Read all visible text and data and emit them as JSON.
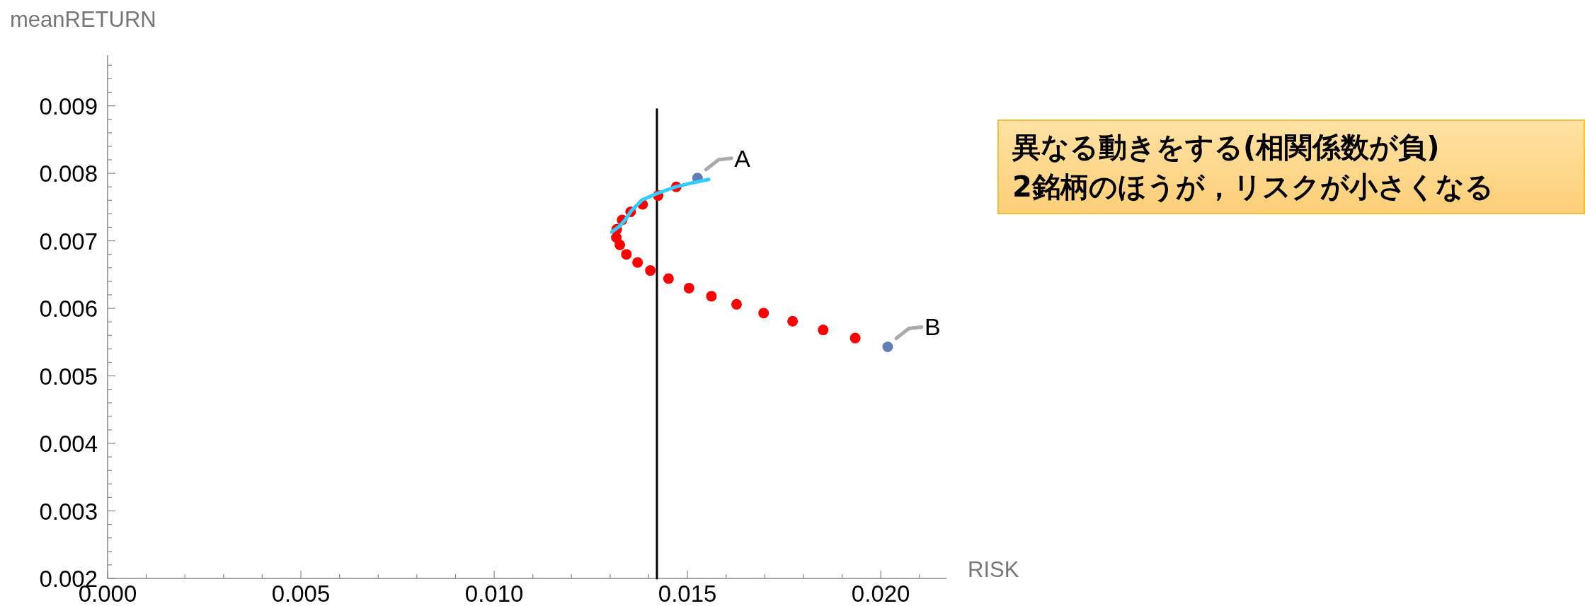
{
  "chart_data": {
    "type": "scatter",
    "xlabel": "RISK",
    "ylabel": "meanRETURN",
    "annotations": [
      {
        "text": "A",
        "x": 0.01526,
        "y": 0.00793
      },
      {
        "text": "B",
        "x": 0.02018,
        "y": 0.00543
      },
      "異なる動きをする(相関係数が負)",
      "2銘柄のほうが，リスクが小さくなる"
    ],
    "xlim": [
      0,
      0.0217
    ],
    "ylim": [
      0.002,
      0.00975
    ],
    "xticks": [
      {
        "value": 0,
        "label": "0.000"
      },
      0.005,
      {
        "value": 0.01,
        "label": "0.010"
      },
      0.015,
      {
        "value": 0.02,
        "label": "0.020"
      },
      {
        "value": 0.001,
        "label": null
      },
      {
        "value": 0.002,
        "label": null
      },
      {
        "value": 0.003,
        "label": null
      },
      {
        "value": 0.004,
        "label": null
      },
      {
        "value": 0.006,
        "label": null
      },
      {
        "value": 0.007,
        "label": null
      },
      {
        "value": 0.008,
        "label": null
      },
      {
        "value": 0.009,
        "label": null
      },
      {
        "value": 0.011,
        "label": null
      },
      {
        "value": 0.012,
        "label": null
      },
      {
        "value": 0.013,
        "label": null
      },
      {
        "value": 0.014,
        "label": null
      },
      {
        "value": 0.016,
        "label": null
      },
      {
        "value": 0.017,
        "label": null
      },
      {
        "value": 0.018,
        "label": null
      },
      {
        "value": 0.019,
        "label": null
      },
      {
        "value": 0.021,
        "label": null
      }
    ],
    "yticks": [
      0.002,
      0.003,
      0.004,
      0.005,
      0.006,
      0.007,
      0.008,
      0.009,
      {
        "value": 0.0022,
        "label": null
      },
      {
        "value": 0.0024,
        "label": null
      },
      {
        "value": 0.0026,
        "label": null
      },
      {
        "value": 0.0028,
        "label": null
      },
      {
        "value": 0.0032,
        "label": null
      },
      {
        "value": 0.0034,
        "label": null
      },
      {
        "value": 0.0036,
        "label": null
      },
      {
        "value": 0.0038,
        "label": null
      },
      {
        "value": 0.0042,
        "label": null
      },
      {
        "value": 0.0044,
        "label": null
      },
      {
        "value": 0.0046,
        "label": null
      },
      {
        "value": 0.0048,
        "label": null
      },
      {
        "value": 0.0052,
        "label": null
      },
      {
        "value": 0.0054,
        "label": null
      },
      {
        "value": 0.0056,
        "label": null
      },
      {
        "value": 0.0058,
        "label": null
      },
      {
        "value": 0.0062,
        "label": null
      },
      {
        "value": 0.0064,
        "label": null
      },
      {
        "value": 0.0066,
        "label": null
      },
      {
        "value": 0.0068,
        "label": null
      },
      {
        "value": 0.0072,
        "label": null
      },
      {
        "value": 0.0074,
        "label": null
      },
      {
        "value": 0.0076,
        "label": null
      },
      {
        "value": 0.0078,
        "label": null
      },
      {
        "value": 0.0082,
        "label": null
      },
      {
        "value": 0.0084,
        "label": null
      },
      {
        "value": 0.0086,
        "label": null
      },
      {
        "value": 0.0088,
        "label": null
      },
      {
        "value": 0.0092,
        "label": null
      },
      {
        "value": 0.0094,
        "label": null
      },
      {
        "value": 0.0096,
        "label": null
      }
    ],
    "grid": false,
    "marker": "circle",
    "series": [
      {
        "type": "line",
        "marker": "none",
        "color": "#000000",
        "x": [
          0.01421,
          0.01421
        ],
        "values": [
          0.002,
          0.00895
        ]
      },
      {
        "color": "#ff0000",
        "x": [
          0.01471,
          0.01424,
          0.01384,
          0.01353,
          0.01331,
          0.01317,
          0.01316,
          0.01325,
          0.01342,
          0.01371,
          0.01404,
          0.01451,
          0.01504,
          0.01562,
          0.01627,
          0.01697,
          0.01772,
          0.01851,
          0.01934
        ],
        "values": [
          0.0078,
          0.00767,
          0.00754,
          0.00743,
          0.00731,
          0.00717,
          0.00705,
          0.00694,
          0.0068,
          0.00668,
          0.00656,
          0.00644,
          0.0063,
          0.00618,
          0.00606,
          0.00593,
          0.00581,
          0.00568,
          0.00556
        ]
      },
      {
        "color": "#5f7eb5",
        "x": [
          0.01526,
          0.02018
        ],
        "values": [
          0.00793,
          0.00543
        ]
      },
      {
        "type": "line",
        "marker": "none",
        "color": "#33ccff",
        "x": [
          0.01304,
          0.01323,
          0.01339,
          0.01354,
          0.01384,
          0.01421,
          0.0147,
          0.01506,
          0.01555
        ],
        "values": [
          0.00713,
          0.00721,
          0.00731,
          0.00744,
          0.00761,
          0.0077,
          0.0078,
          0.00785,
          0.00791
        ]
      }
    ]
  }
}
